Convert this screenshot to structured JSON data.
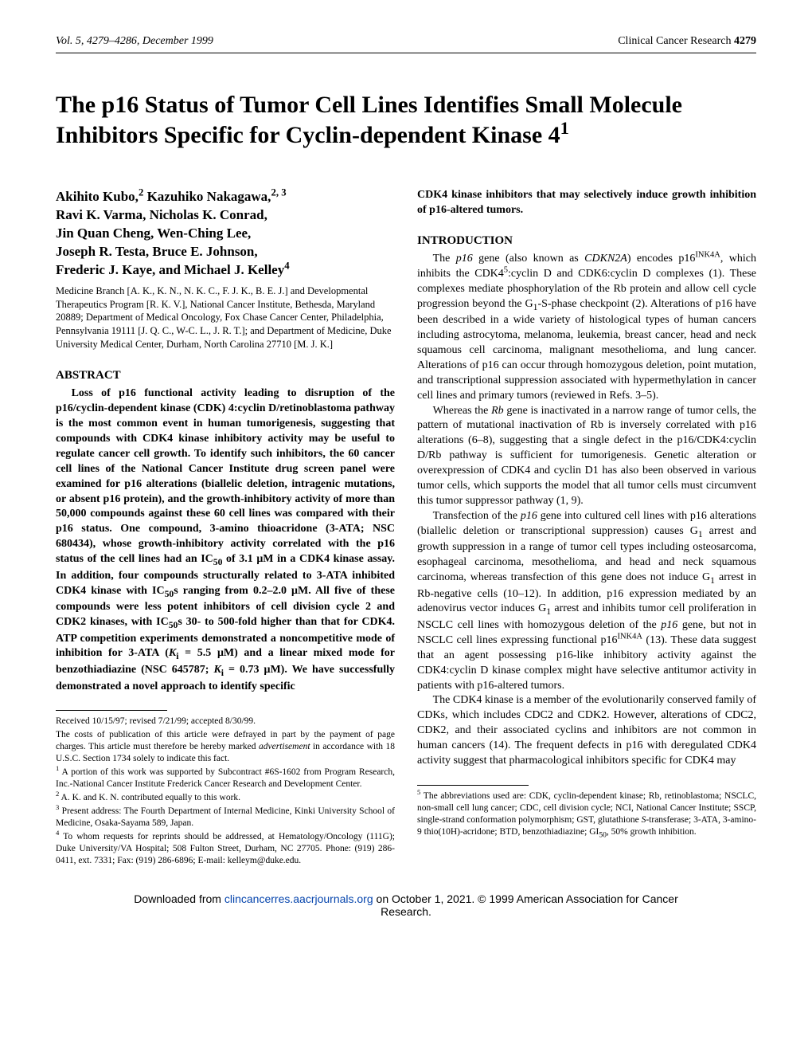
{
  "running_head": {
    "left": "Vol. 5, 4279–4286, December 1999",
    "journal": "Clinical Cancer Research",
    "page": "4279"
  },
  "title_html": "The p16 Status of Tumor Cell Lines Identifies Small Molecule Inhibitors Specific for Cyclin-dependent Kinase 4<sup>1</sup>",
  "authors_html": "Akihito Kubo,<sup>2</sup> Kazuhiko Nakagawa,<sup>2, 3</sup><br>Ravi K. Varma, Nicholas K. Conrad,<br>Jin Quan Cheng, Wen-Ching Lee,<br>Joseph R. Testa, Bruce E. Johnson,<br>Frederic J. Kaye, and Michael J. Kelley<sup>4</sup>",
  "affiliations": "Medicine Branch [A. K., K. N., N. K. C., F. J. K., B. E. J.] and Developmental Therapeutics Program [R. K. V.], National Cancer Institute, Bethesda, Maryland 20889; Department of Medical Oncology, Fox Chase Cancer Center, Philadelphia, Pennsylvania 19111 [J. Q. C., W-C. L., J. R. T.]; and Department of Medicine, Duke University Medical Center, Durham, North Carolina 27710 [M. J. K.]",
  "abstract_heading": "ABSTRACT",
  "abstract_html": "Loss of p16 functional activity leading to disruption of the p16/cyclin-dependent kinase (CDK) 4:cyclin D/retinoblastoma pathway is the most common event in human tumorigenesis, suggesting that compounds with CDK4 kinase inhibitory activity may be useful to regulate cancer cell growth. To identify such inhibitors, the 60 cancer cell lines of the National Cancer Institute drug screen panel were examined for p16 alterations (biallelic deletion, intragenic mutations, or absent p16 protein), and the growth-inhibitory activity of more than 50,000 compounds against these 60 cell lines was compared with their p16 status. One compound, 3-amino thioacridone (3-ATA; NSC 680434), whose growth-inhibitory activity correlated with the p16 status of the cell lines had an IC<sub>50</sub> of 3.1 μM in a CDK4 kinase assay. In addition, four compounds structurally related to 3-ATA inhibited CDK4 kinase with IC<sub>50</sub>s ranging from 0.2–2.0 μM. All five of these compounds were less potent inhibitors of cell division cycle 2 and CDK2 kinases, with IC<sub>50</sub>s 30- to 500-fold higher than that for CDK4. ATP competition experiments demonstrated a noncompetitive mode of inhibition for 3-ATA (<i>K</i><sub>i</sub> = 5.5 μM) and a linear mixed mode for benzothiadiazine (NSC 645787; <i>K</i><sub>i</sub> = 0.73 μM). We have successfully demonstrated a novel approach to identify specific",
  "right_lead_html": "CDK4 kinase inhibitors that may selectively induce growth inhibition of p16-altered tumors.",
  "intro_heading": "INTRODUCTION",
  "intro_paras_html": [
    "The <i>p16</i> gene (also known as <i>CDKN2A</i>) encodes p16<sup>INK4A</sup>, which inhibits the CDK4<sup>5</sup>:cyclin D and CDK6:cyclin D complexes (1). These complexes mediate phosphorylation of the Rb protein and allow cell cycle progression beyond the G<sub>1</sub>-S-phase checkpoint (2). Alterations of p16 have been described in a wide variety of histological types of human cancers including astrocytoma, melanoma, leukemia, breast cancer, head and neck squamous cell carcinoma, malignant mesothelioma, and lung cancer. Alterations of p16 can occur through homozygous deletion, point mutation, and transcriptional suppression associated with hypermethylation in cancer cell lines and primary tumors (reviewed in Refs. 3–5).",
    "Whereas the <i>Rb</i> gene is inactivated in a narrow range of tumor cells, the pattern of mutational inactivation of Rb is inversely correlated with p16 alterations (6–8), suggesting that a single defect in the p16/CDK4:cyclin D/Rb pathway is sufficient for tumorigenesis. Genetic alteration or overexpression of CDK4 and cyclin D1 has also been observed in various tumor cells, which supports the model that all tumor cells must circumvent this tumor suppressor pathway (1, 9).",
    "Transfection of the <i>p16</i> gene into cultured cell lines with p16 alterations (biallelic deletion or transcriptional suppression) causes G<sub>1</sub> arrest and growth suppression in a range of tumor cell types including osteosarcoma, esophageal carcinoma, mesothelioma, and head and neck squamous carcinoma, whereas transfection of this gene does not induce G<sub>1</sub> arrest in Rb-negative cells (10–12). In addition, p16 expression mediated by an adenovirus vector induces G<sub>1</sub> arrest and inhibits tumor cell proliferation in NSCLC cell lines with homozygous deletion of the <i>p16</i> gene, but not in NSCLC cell lines expressing functional p16<sup>INK4A</sup> (13). These data suggest that an agent possessing p16-like inhibitory activity against the CDK4:cyclin D kinase complex might have selective antitumor activity in patients with p16-altered tumors.",
    "The CDK4 kinase is a member of the evolutionarily conserved family of CDKs, which includes CDC2 and CDK2. However, alterations of CDC2, CDK2, and their associated cyclins and inhibitors are not common in human cancers (14). The frequent defects in p16 with deregulated CDK4 activity suggest that pharmacological inhibitors specific for CDK4 may"
  ],
  "left_footnotes_html": [
    "Received 10/15/97; revised 7/21/99; accepted 8/30/99.",
    "The costs of publication of this article were defrayed in part by the payment of page charges. This article must therefore be hereby marked <i>advertisement</i> in accordance with 18 U.S.C. Section 1734 solely to indicate this fact.",
    "<sup>1</sup> A portion of this work was supported by Subcontract #6S-1602 from Program Research, Inc.-National Cancer Institute Frederick Cancer Research and Development Center.",
    "<sup>2</sup> A. K. and K. N. contributed equally to this work.",
    "<sup>3</sup> Present address: The Fourth Department of Internal Medicine, Kinki University School of Medicine, Osaka-Sayama 589, Japan.",
    "<sup>4</sup> To whom requests for reprints should be addressed, at Hematology/Oncology (111G); Duke University/VA Hospital; 508 Fulton Street, Durham, NC 27705. Phone: (919) 286-0411, ext. 7331; Fax: (919) 286-6896; E-mail: kelleym@duke.edu."
  ],
  "right_footnote_html": "<sup>5</sup> The abbreviations used are: CDK, cyclin-dependent kinase; Rb, retinoblastoma; NSCLC, non-small cell lung cancer; CDC, cell division cycle; NCI, National Cancer Institute; SSCP, single-strand conformation polymorphism; GST, glutathione <i>S</i>-transferase; 3-ATA, 3-amino-9 thio(10H)-acridone; BTD, benzothiadiazine; GI<sub>50</sub>, 50% growth inhibition.",
  "download_banner": {
    "prefix": "Downloaded from ",
    "link_text": "clincancerres.aacrjournals.org",
    "middle": " on October 1, 2021. © 1999 American Association for Cancer",
    "line2": "Research."
  }
}
